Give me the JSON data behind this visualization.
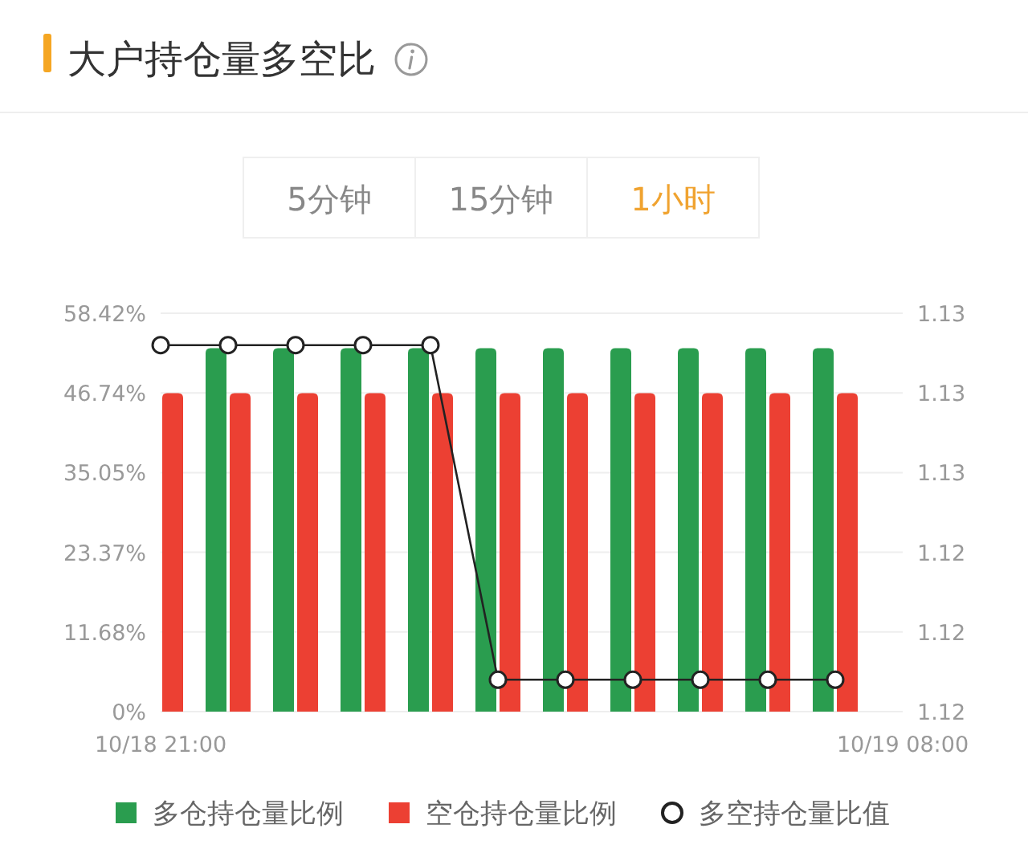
{
  "chart_data": {
    "type": "bar",
    "title": "大户持仓量多空比",
    "annotations": [
      "5分钟",
      "15分钟",
      "1小时"
    ],
    "categories": [
      "10/18 21:00",
      null,
      null,
      null,
      null,
      null,
      null,
      null,
      null,
      null,
      null,
      "10/19 08:00"
    ],
    "series": [
      {
        "name": "多仓持仓量比例",
        "color": "#2a9d4f",
        "values": [
          null,
          53.3,
          53.3,
          53.3,
          53.3,
          53.3,
          53.3,
          53.3,
          53.3,
          53.3,
          53.3,
          null
        ]
      },
      {
        "name": "空仓持仓量比例",
        "color": "#ec4033",
        "values": [
          46.7,
          46.7,
          46.7,
          46.7,
          46.7,
          46.7,
          46.7,
          46.7,
          46.7,
          46.7,
          46.7,
          null
        ]
      },
      {
        "name": "多空持仓量比值",
        "type": "line",
        "axis": "y2",
        "color": "#222222",
        "marker": "circle",
        "values": [
          1.1292,
          1.1292,
          1.1292,
          1.1292,
          1.1292,
          1.1208,
          1.1208,
          1.1208,
          1.1208,
          1.1208,
          1.1208,
          null
        ]
      }
    ],
    "ylim": [
      0,
      58.42
    ],
    "yticks": [
      {
        "value": 0,
        "label": "0%"
      },
      {
        "value": 11.68,
        "label": "11.68%"
      },
      {
        "value": 23.37,
        "label": "23.37%"
      },
      {
        "value": 35.05,
        "label": "35.05%"
      },
      {
        "value": 46.74,
        "label": "46.74%"
      },
      {
        "value": 58.42,
        "label": "58.42%"
      }
    ],
    "y2lim": [
      1.12,
      1.13
    ],
    "y2ticks": [
      {
        "value": 1.12,
        "label": "1.12"
      },
      {
        "value": 1.122,
        "label": "1.12"
      },
      {
        "value": 1.124,
        "label": "1.12"
      },
      {
        "value": 1.126,
        "label": "1.13"
      },
      {
        "value": 1.128,
        "label": "1.13"
      },
      {
        "value": 1.13,
        "label": "1.13"
      }
    ],
    "grid": "y",
    "legend": "bottom"
  }
}
